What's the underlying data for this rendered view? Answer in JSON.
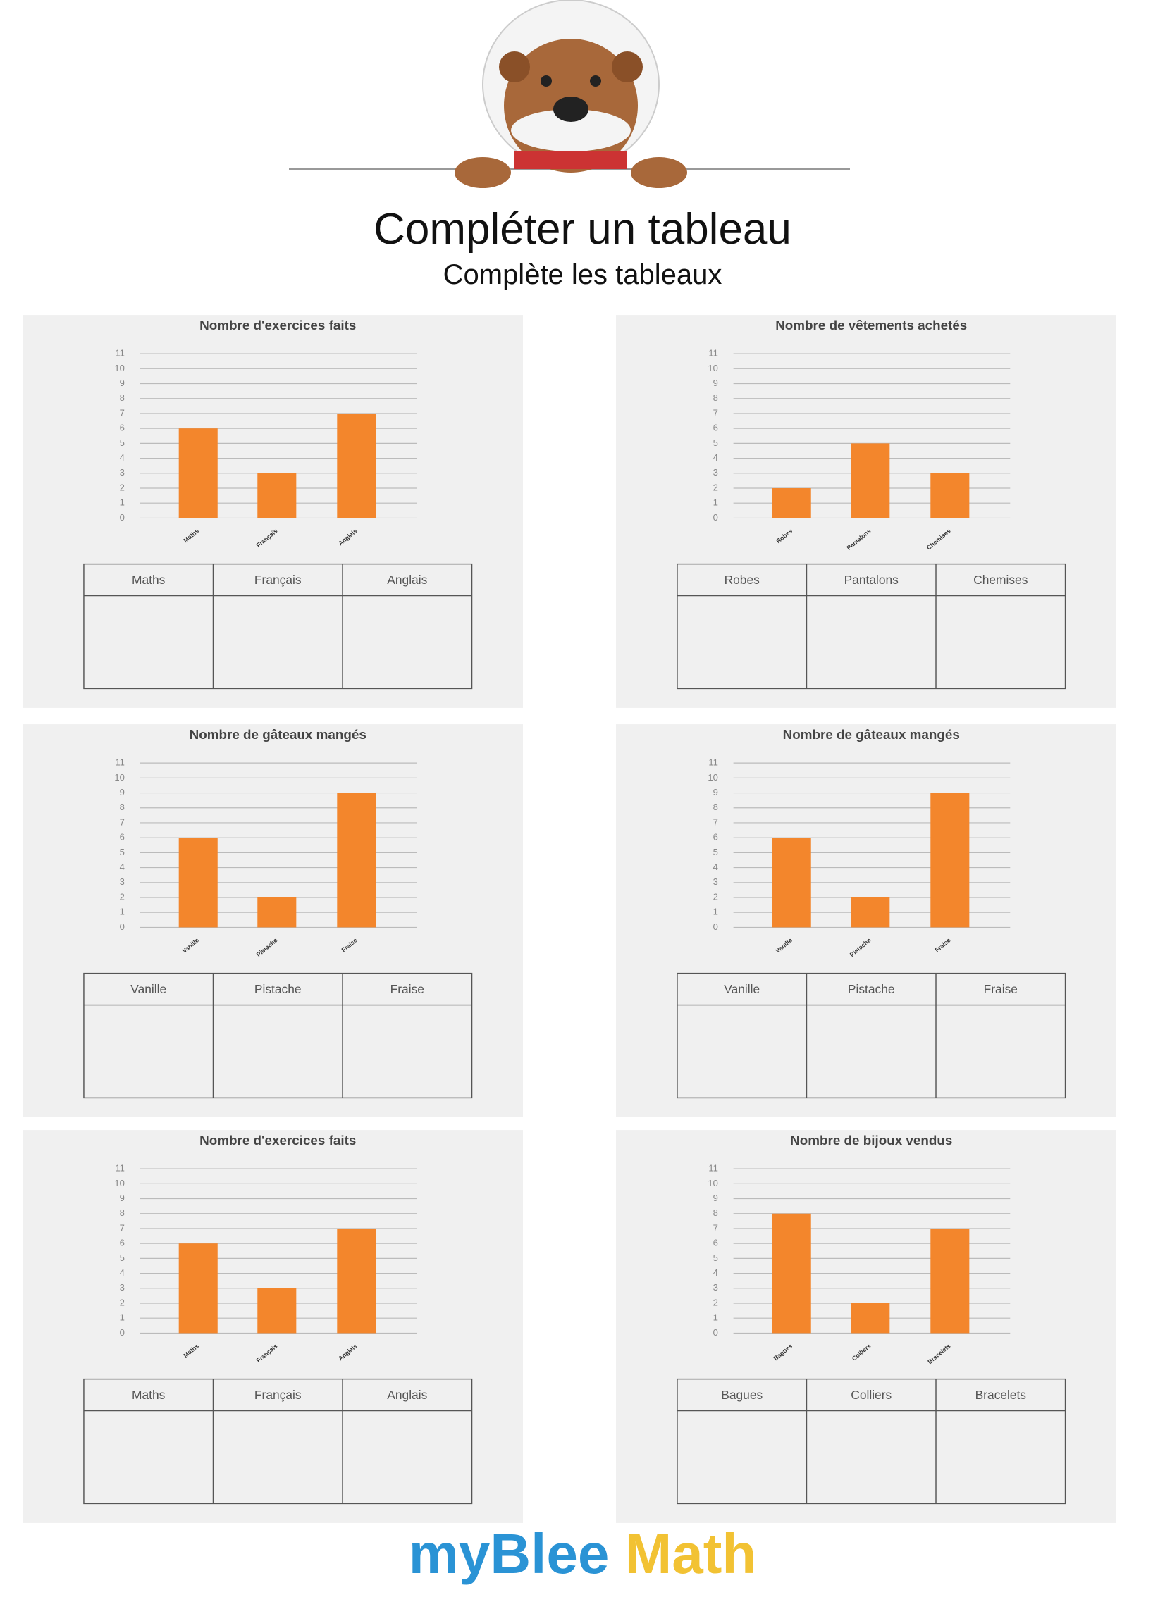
{
  "title": "Compléter un tableau",
  "subtitle": "Complète les tableaux",
  "brand": [
    "myBlee",
    "Math"
  ],
  "chart_data": [
    {
      "type": "bar",
      "title": "Nombre d'exercices faits",
      "categories": [
        "Maths",
        "Français",
        "Anglais"
      ],
      "values": [
        6,
        3,
        7
      ],
      "color": "#f3862c",
      "ylim": [
        0,
        11
      ],
      "yticks": [
        0,
        1,
        2,
        3,
        4,
        5,
        6,
        7,
        8,
        9,
        10,
        11
      ],
      "grid": true
    },
    {
      "type": "bar",
      "title": "Nombre de vêtements achetés",
      "categories": [
        "Robes",
        "Pantalons",
        "Chemises"
      ],
      "values": [
        2,
        5,
        3
      ],
      "color": "#f3862c",
      "ylim": [
        0,
        11
      ],
      "yticks": [
        0,
        1,
        2,
        3,
        4,
        5,
        6,
        7,
        8,
        9,
        10,
        11
      ],
      "grid": true
    },
    {
      "type": "bar",
      "title": "Nombre de gâteaux mangés",
      "categories": [
        "Vanille",
        "Pistache",
        "Fraise"
      ],
      "values": [
        6,
        2,
        9
      ],
      "color": "#f3862c",
      "ylim": [
        0,
        11
      ],
      "yticks": [
        0,
        1,
        2,
        3,
        4,
        5,
        6,
        7,
        8,
        9,
        10,
        11
      ],
      "grid": true
    },
    {
      "type": "bar",
      "title": "Nombre de gâteaux mangés",
      "categories": [
        "Vanille",
        "Pistache",
        "Fraise"
      ],
      "values": [
        6,
        2,
        9
      ],
      "color": "#f3862c",
      "ylim": [
        0,
        11
      ],
      "yticks": [
        0,
        1,
        2,
        3,
        4,
        5,
        6,
        7,
        8,
        9,
        10,
        11
      ],
      "grid": true
    },
    {
      "type": "bar",
      "title": "Nombre d'exercices faits",
      "categories": [
        "Maths",
        "Français",
        "Anglais"
      ],
      "values": [
        6,
        3,
        7
      ],
      "color": "#f3862c",
      "ylim": [
        0,
        11
      ],
      "yticks": [
        0,
        1,
        2,
        3,
        4,
        5,
        6,
        7,
        8,
        9,
        10,
        11
      ],
      "grid": true
    },
    {
      "type": "bar",
      "title": "Nombre de bijoux vendus",
      "categories": [
        "Bagues",
        "Colliers",
        "Bracelets"
      ],
      "values": [
        8,
        2,
        7
      ],
      "color": "#f3862c",
      "ylim": [
        0,
        11
      ],
      "yticks": [
        0,
        1,
        2,
        3,
        4,
        5,
        6,
        7,
        8,
        9,
        10,
        11
      ],
      "grid": true
    }
  ]
}
